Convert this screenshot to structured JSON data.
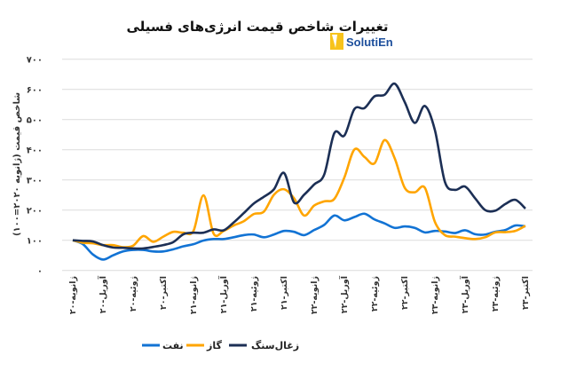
{
  "chart_data": {
    "type": "line",
    "title": "تغییرات شاخص قیمت انرژی‌های فسیلی",
    "ylabel": "شاخص قیمت (ژانویه ۲۰۲۰=۱۰۰)",
    "xlabel": "",
    "ylim": [
      0,
      700
    ],
    "yticks": [
      "۰",
      "۱۰۰",
      "۲۰۰",
      "۳۰۰",
      "۴۰۰",
      "۵۰۰",
      "۶۰۰",
      "۷۰۰"
    ],
    "grid": true,
    "legend_position": "bottom",
    "x_start": "ژانویه-۲۰",
    "x_end": "اکتبر-۲۳",
    "x_frequency": "monthly",
    "xtick_labels": [
      "ژانویه-۲۰",
      "آوریل-۲۰",
      "ژوئیه-۲۰",
      "اکتبر-۲۰",
      "ژانویه-۲۱",
      "آوریل-۲۱",
      "ژوئیه-۲۱",
      "اکتبر-۲۱",
      "ژانویه-۲۲",
      "آوریل-۲۲",
      "ژوئیه-۲۲",
      "اکتبر-۲۲",
      "ژانویه-۲۳",
      "آوریل-۲۳",
      "ژوئیه-۲۳",
      "اکتبر-۲۳"
    ],
    "series": [
      {
        "name": "زغال‌سنگ",
        "color": "#1c2f55",
        "values": [
          100,
          98,
          96,
          84,
          76,
          75,
          73,
          73,
          78,
          84,
          94,
          120,
          125,
          125,
          136,
          133,
          159,
          190,
          222,
          244,
          269,
          323,
          225,
          251,
          285,
          318,
          455,
          447,
          535,
          538,
          577,
          582,
          619,
          558,
          489,
          545,
          465,
          293,
          267,
          278,
          239,
          200,
          198,
          220,
          234,
          205
        ]
      },
      {
        "name": "گاز",
        "color": "#ffa500",
        "values": [
          100,
          92,
          90,
          84,
          84,
          77,
          82,
          114,
          95,
          112,
          128,
          125,
          131,
          249,
          122,
          131,
          149,
          163,
          187,
          195,
          251,
          269,
          239,
          182,
          215,
          229,
          237,
          308,
          401,
          376,
          355,
          432,
          372,
          274,
          259,
          274,
          161,
          117,
          112,
          107,
          104,
          110,
          126,
          127,
          131,
          148
        ]
      },
      {
        "name": "نفت",
        "color": "#1273d4",
        "values": [
          100,
          87,
          53,
          36,
          50,
          63,
          68,
          68,
          63,
          63,
          70,
          80,
          87,
          99,
          104,
          104,
          110,
          117,
          119,
          110,
          119,
          131,
          128,
          117,
          134,
          151,
          182,
          166,
          177,
          188,
          169,
          156,
          141,
          146,
          141,
          126,
          131,
          129,
          124,
          133,
          120,
          119,
          128,
          134,
          149,
          146
        ]
      }
    ]
  },
  "logo": {
    "text": "SolutiEn",
    "accent": "#f7c31c"
  }
}
